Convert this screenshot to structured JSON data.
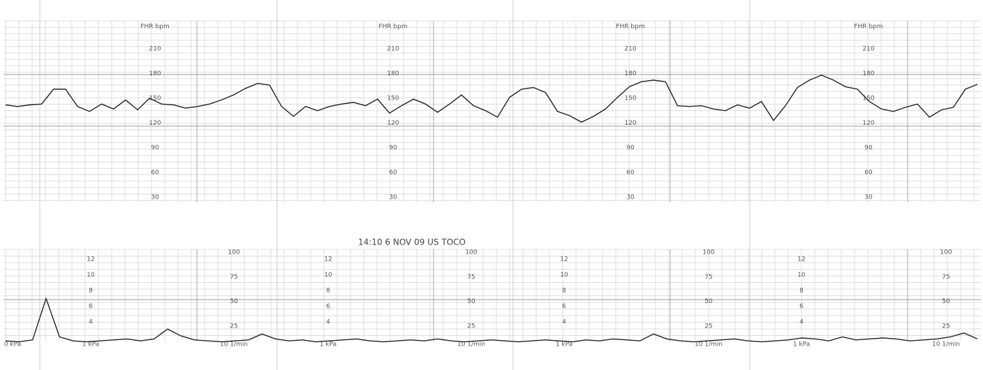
{
  "fhr": {
    "header": "FHR bpm",
    "scale": [
      210,
      180,
      150,
      120,
      90,
      60,
      30
    ],
    "trace": [
      142,
      140,
      142,
      143,
      161,
      161,
      140,
      134,
      143,
      137,
      148,
      136,
      150,
      143,
      142,
      138,
      140,
      143,
      148,
      154,
      162,
      168,
      166,
      140,
      128,
      140,
      135,
      140,
      143,
      145,
      141,
      149,
      132,
      141,
      149,
      143,
      133,
      143,
      154,
      141,
      135,
      127,
      151,
      161,
      163,
      157,
      134,
      129,
      121,
      128,
      137,
      151,
      164,
      170,
      172,
      170,
      141,
      140,
      141,
      137,
      135,
      142,
      138,
      146,
      123,
      141,
      163,
      172,
      178,
      172,
      164,
      161,
      146,
      137,
      134,
      139,
      143,
      127,
      136,
      139,
      161,
      167
    ]
  },
  "toco": {
    "title": "14:10 6 NOV 09 US TOCO",
    "scale_kpa": [
      12,
      10,
      8,
      6,
      4
    ],
    "scale_pct": [
      100,
      75,
      50,
      25
    ],
    "footer_left": "0 kPa",
    "footer_kpa": "1 kPa",
    "footer_speed": "10 1/min",
    "trace": [
      10,
      9,
      11,
      53,
      14,
      10,
      9,
      10,
      11,
      12,
      10,
      12,
      22,
      15,
      11,
      10,
      9,
      10,
      11,
      17,
      12,
      10,
      11,
      9,
      10,
      11,
      12,
      10,
      9,
      10,
      11,
      10,
      12,
      10,
      9,
      10,
      11,
      10,
      9,
      10,
      11,
      10,
      9,
      11,
      10,
      12,
      11,
      10,
      17,
      12,
      10,
      9,
      10,
      11,
      12,
      10,
      9,
      10,
      11,
      13,
      12,
      10,
      14,
      11,
      12,
      13,
      12,
      10,
      11,
      12,
      14,
      18,
      12
    ]
  }
}
